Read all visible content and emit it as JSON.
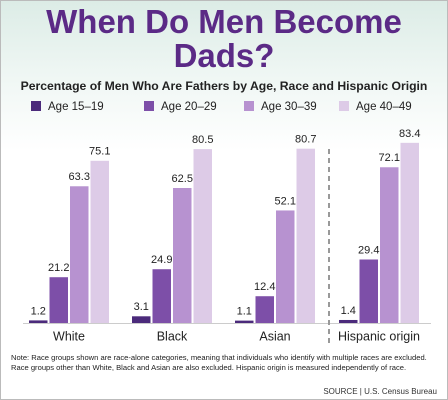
{
  "chart_data": {
    "type": "bar",
    "title": "When Do Men Become Dads?",
    "subtitle": "Percentage of Men Who Are Fathers by Age, Race and Hispanic Origin",
    "categories": [
      "White",
      "Black",
      "Asian",
      "Hispanic origin"
    ],
    "series": [
      {
        "name": "Age 15–19",
        "color": "#4b2a7b",
        "values": [
          1.2,
          3.1,
          1.1,
          1.4
        ]
      },
      {
        "name": "Age 20–29",
        "color": "#7d4fa8",
        "values": [
          21.2,
          24.9,
          12.4,
          29.4
        ]
      },
      {
        "name": "Age 30–39",
        "color": "#b792d0",
        "values": [
          63.3,
          62.5,
          52.1,
          72.1
        ]
      },
      {
        "name": "Age 40–49",
        "color": "#ddcbe7",
        "values": [
          75.1,
          80.5,
          80.7,
          83.4
        ]
      }
    ],
    "note": "Note: Race groups shown are race-alone categories, meaning that individuals who identify with multiple races are excluded. Race groups other than White, Black and Asian are also excluded. Hispanic origin is measured independently of race.",
    "source": "SOURCE | U.S. Census Bureau"
  }
}
